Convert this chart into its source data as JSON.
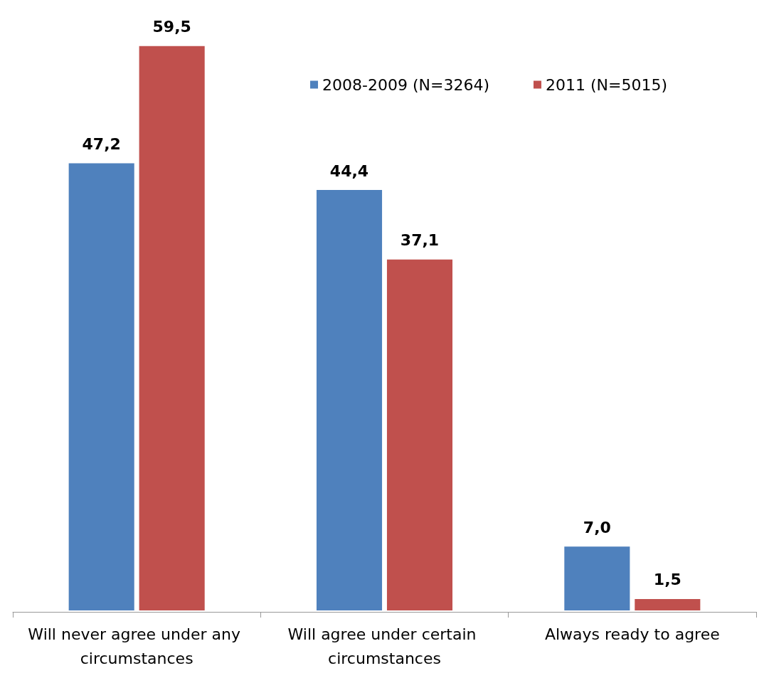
{
  "chart_data": {
    "type": "bar",
    "categories": [
      "Will never agree under any circumstances",
      "Will agree under certain circumstances",
      "Always ready to agree"
    ],
    "series": [
      {
        "name": "2008-2009 (N=3264)",
        "color": "#4f81bd",
        "values": [
          47.2,
          44.4,
          7.0
        ],
        "value_labels": [
          "47,2",
          "44,4",
          "7,0"
        ]
      },
      {
        "name": "2011 (N=5015)",
        "color": "#c0504d",
        "values": [
          59.5,
          37.1,
          1.5
        ],
        "value_labels": [
          "59,5",
          "37,1",
          "1,5"
        ]
      }
    ],
    "legend": "top right"
  }
}
